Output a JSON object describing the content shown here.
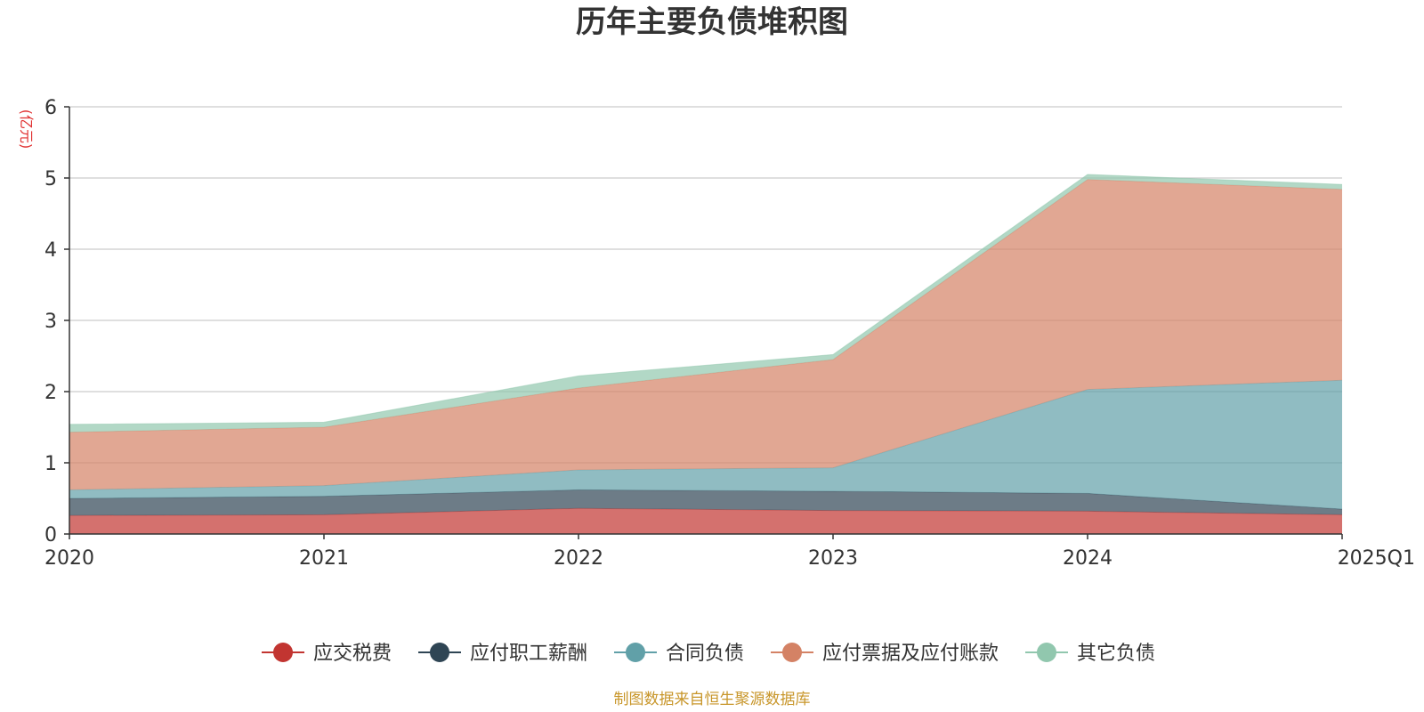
{
  "chart_data": {
    "type": "area",
    "stacked": true,
    "title": "历年主要负债堆积图",
    "unit_label": "(亿元)",
    "xlabel": "",
    "ylabel": "",
    "ylim": [
      0,
      6
    ],
    "yticks": [
      0,
      1,
      2,
      3,
      4,
      5,
      6
    ],
    "grid": true,
    "legend_position": "bottom",
    "categories": [
      "2020",
      "2021",
      "2022",
      "2023",
      "2024",
      "2025Q1"
    ],
    "series": [
      {
        "name": "应交税费",
        "color": "#c23531",
        "values": [
          0.26,
          0.27,
          0.36,
          0.33,
          0.32,
          0.27
        ]
      },
      {
        "name": "应付职工薪酬",
        "color": "#2f4554",
        "values": [
          0.24,
          0.26,
          0.26,
          0.27,
          0.25,
          0.08
        ]
      },
      {
        "name": "合同负债",
        "color": "#61a0a8",
        "values": [
          0.12,
          0.15,
          0.28,
          0.33,
          1.46,
          1.81
        ]
      },
      {
        "name": "应付票据及应付账款",
        "color": "#d48265",
        "values": [
          0.81,
          0.82,
          1.15,
          1.52,
          2.95,
          2.68
        ]
      },
      {
        "name": "其它负债",
        "color": "#91c7ae",
        "values": [
          0.11,
          0.07,
          0.17,
          0.07,
          0.07,
          0.07
        ]
      }
    ]
  },
  "footer": {
    "source_text": "制图数据来自恒生聚源数据库"
  }
}
